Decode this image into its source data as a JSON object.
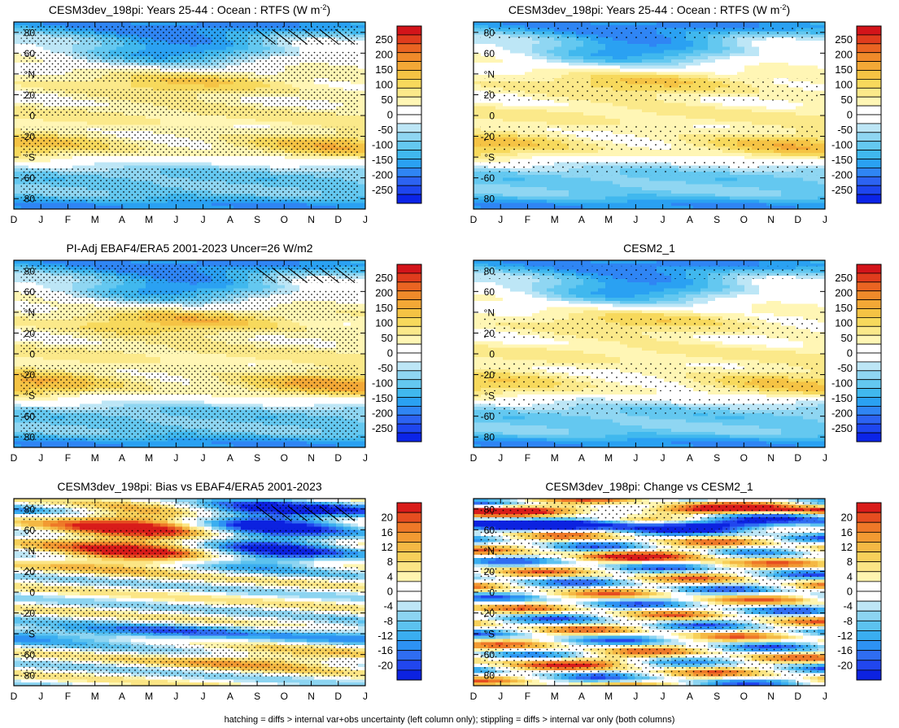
{
  "figure": {
    "footer": "hatching = diffs > internal var+obs uncertainty (left column only); stippling = diffs > internal var only (both columns)"
  },
  "colors": {
    "full": [
      "#0b24e8",
      "#1e46ef",
      "#2c63f2",
      "#2f85f4",
      "#2aa1f2",
      "#40b8ee",
      "#64c8f0",
      "#8fd6f2",
      "#bde6f6",
      "#ffffff",
      "#ffffff",
      "#fff6b5",
      "#fbe98a",
      "#f7d95c",
      "#f5c344",
      "#f3a836",
      "#f08a2a",
      "#ea6422",
      "#e03c1d",
      "#d3141a"
    ],
    "diff": [
      "#0c22e0",
      "#2146ee",
      "#2f6df2",
      "#2d92f3",
      "#3aaef0",
      "#5cc2ef",
      "#8cd4f1",
      "#bee6f6",
      "#ffffff",
      "#ffffff",
      "#fff5b0",
      "#fbe585",
      "#f7d05a",
      "#f4b844",
      "#f29a32",
      "#ee7828",
      "#e64d20",
      "#d91c1a"
    ]
  },
  "chart_data": [
    {
      "panel": "top-left",
      "type": "heatmap",
      "title": "CESM3dev_198pi: Years 25-44 : Ocean : RTFS (W m",
      "title_sup": "-2",
      "title_tail": ")",
      "field": "full",
      "x": [
        "D",
        "J",
        "F",
        "M",
        "A",
        "M",
        "J",
        "J",
        "A",
        "S",
        "O",
        "N",
        "D",
        "J"
      ],
      "ylim": [
        -90,
        90
      ],
      "yticks": [
        "80",
        "60",
        "°N",
        "20",
        "0",
        "-20",
        "°S",
        "-60",
        "80"
      ],
      "colorbar": {
        "ticks": [
          "250",
          "200",
          "150",
          "100",
          "50",
          "0",
          "-50",
          "-100",
          "-150",
          "-200",
          "-250"
        ],
        "min": -275,
        "max": 275
      },
      "hatching": true,
      "stippling": "dense"
    },
    {
      "panel": "top-right",
      "type": "heatmap",
      "title": "CESM3dev_198pi: Years 25-44 : Ocean : RTFS (W m",
      "title_sup": "-2",
      "title_tail": ")",
      "field": "full",
      "x": [
        "D",
        "J",
        "F",
        "M",
        "A",
        "M",
        "J",
        "J",
        "A",
        "S",
        "O",
        "N",
        "D",
        "J"
      ],
      "ylim": [
        -90,
        90
      ],
      "yticks": [
        "80",
        "60",
        "°N",
        "20",
        "0",
        "-20",
        "°S",
        "-60",
        "80"
      ],
      "colorbar": {
        "ticks": [
          "250",
          "200",
          "150",
          "100",
          "50",
          "0",
          "-50",
          "-100",
          "-150",
          "-200",
          "-250"
        ],
        "min": -275,
        "max": 275
      },
      "hatching": false,
      "stippling": "sparse"
    },
    {
      "panel": "mid-left",
      "type": "heatmap",
      "title": "PI-Adj EBAF4/ERA5 2001-2023 Uncer=26 W/m2",
      "title_sup": "",
      "title_tail": "",
      "field": "full",
      "x": [
        "D",
        "J",
        "F",
        "M",
        "A",
        "M",
        "J",
        "J",
        "A",
        "S",
        "O",
        "N",
        "D",
        "J"
      ],
      "ylim": [
        -90,
        90
      ],
      "yticks": [
        "80",
        "60",
        "°N",
        "20",
        "0",
        "-20",
        "°S",
        "-60",
        "80"
      ],
      "colorbar": {
        "ticks": [
          "250",
          "200",
          "150",
          "100",
          "50",
          "0",
          "-50",
          "-100",
          "-150",
          "-200",
          "-250"
        ],
        "min": -275,
        "max": 275
      },
      "hatching": true,
      "stippling": "dense"
    },
    {
      "panel": "mid-right",
      "type": "heatmap",
      "title": "CESM2_1",
      "title_sup": "",
      "title_tail": "",
      "field": "full",
      "x": [
        "D",
        "J",
        "F",
        "M",
        "A",
        "M",
        "J",
        "J",
        "A",
        "S",
        "O",
        "N",
        "D",
        "J"
      ],
      "ylim": [
        -90,
        90
      ],
      "yticks": [
        "80",
        "60",
        "°N",
        "20",
        "0",
        "-20",
        "°S",
        "-60",
        "80"
      ],
      "colorbar": {
        "ticks": [
          "250",
          "200",
          "150",
          "100",
          "50",
          "0",
          "-50",
          "-100",
          "-150",
          "-200",
          "-250"
        ],
        "min": -275,
        "max": 275
      },
      "hatching": false,
      "stippling": "sparse"
    },
    {
      "panel": "bottom-left",
      "type": "heatmap",
      "title": "CESM3dev_198pi: Bias vs EBAF4/ERA5 2001-2023",
      "title_sup": "",
      "title_tail": "",
      "field": "bias",
      "x": [
        "D",
        "J",
        "F",
        "M",
        "A",
        "M",
        "J",
        "J",
        "A",
        "S",
        "O",
        "N",
        "D",
        "J"
      ],
      "ylim": [
        -90,
        90
      ],
      "yticks": [
        "80",
        "60",
        "°N",
        "20",
        "0",
        "-20",
        "°S",
        "-60",
        "80"
      ],
      "colorbar": {
        "ticks": [
          "20",
          "16",
          "12",
          "8",
          "4",
          "0",
          "-4",
          "-8",
          "-12",
          "-16",
          "-20"
        ],
        "min": -22,
        "max": 22
      },
      "hatching": true,
      "stippling": "dense"
    },
    {
      "panel": "bottom-right",
      "type": "heatmap",
      "title": "CESM3dev_198pi: Change vs CESM2_1",
      "title_sup": "",
      "title_tail": "",
      "field": "change",
      "x": [
        "D",
        "J",
        "F",
        "M",
        "A",
        "M",
        "J",
        "J",
        "A",
        "S",
        "O",
        "N",
        "D",
        "J"
      ],
      "ylim": [
        -90,
        90
      ],
      "yticks": [
        "80",
        "60",
        "°N",
        "20",
        "0",
        "-20",
        "°S",
        "-60",
        "80"
      ],
      "colorbar": {
        "ticks": [
          "20",
          "16",
          "12",
          "8",
          "4",
          "0",
          "-4",
          "-8",
          "-12",
          "-16",
          "-20"
        ],
        "min": -22,
        "max": 22
      },
      "hatching": false,
      "stippling": "medium"
    }
  ]
}
